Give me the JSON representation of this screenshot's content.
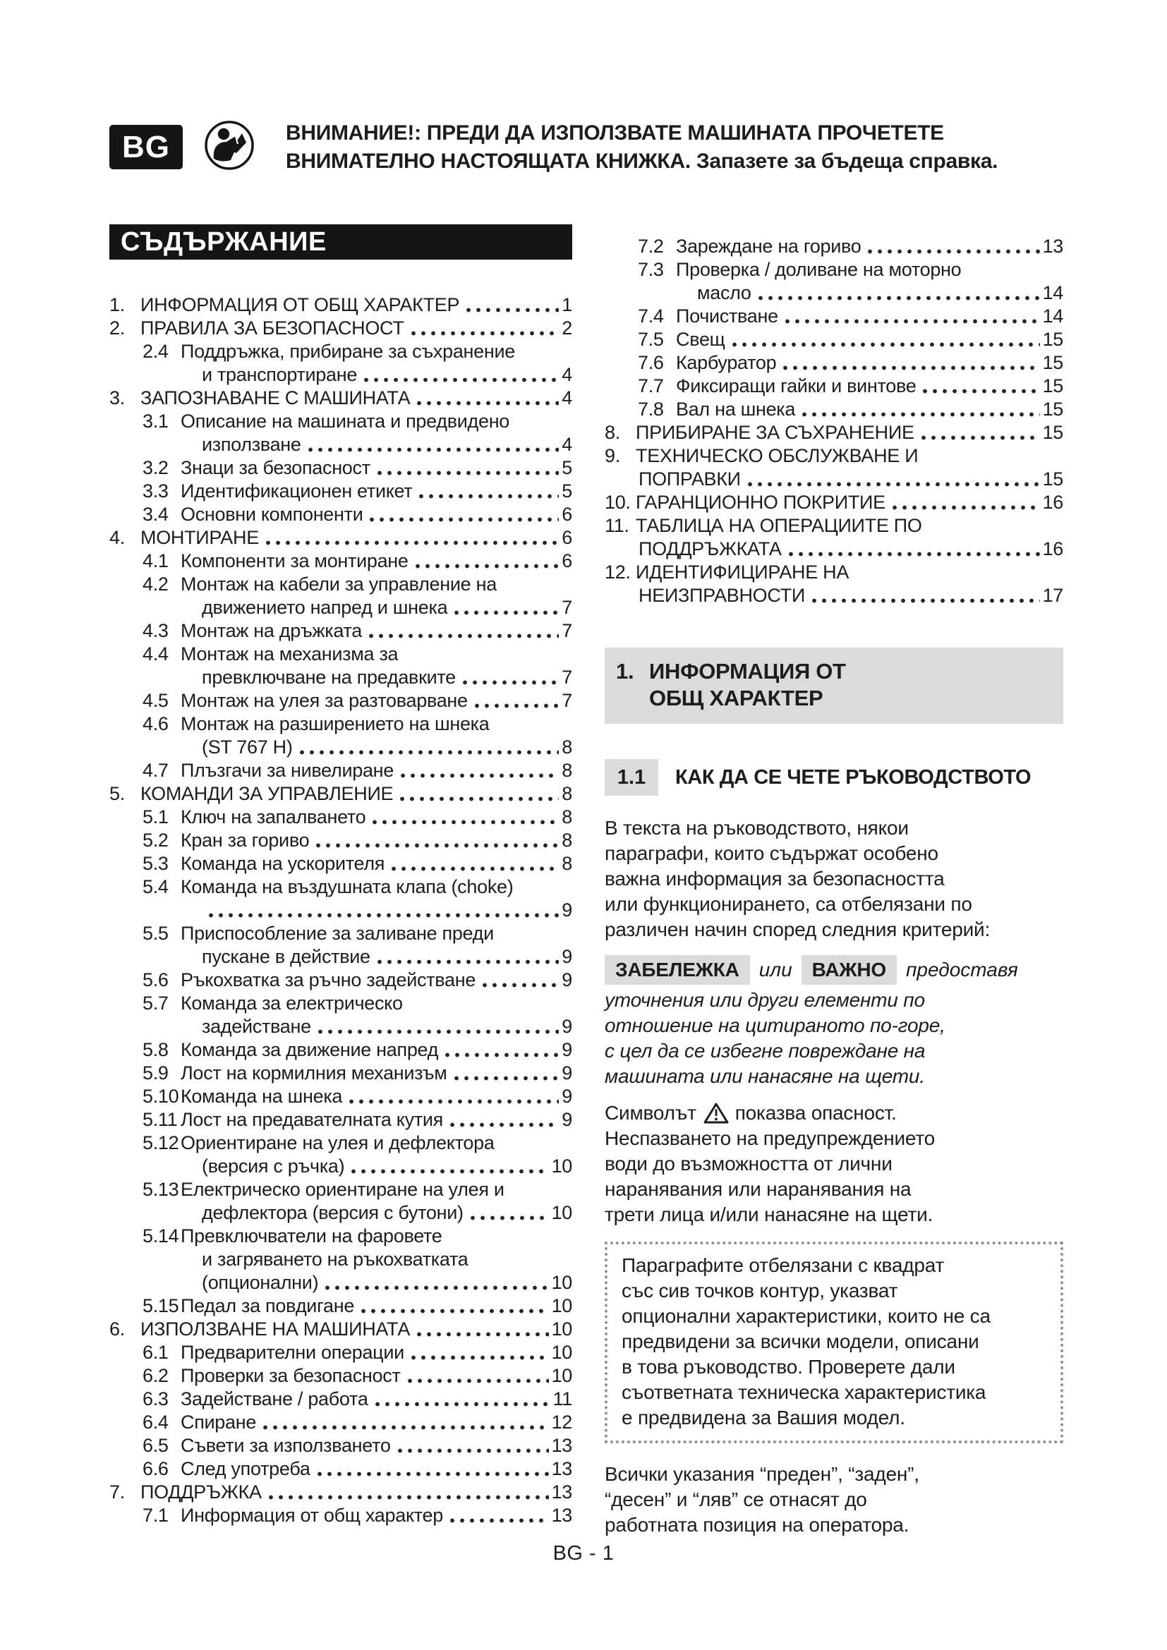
{
  "badge": {
    "label": "BG"
  },
  "header": {
    "line1": "ВНИМАНИЕ!: ПРЕДИ ДА ИЗПОЛЗВАТЕ МАШИНАТА ПРОЧЕТЕТЕ",
    "line2": "ВНИМАТЕЛНО НАСТОЯЩАТА КНИЖКА. Запазете за бъдеща справка."
  },
  "toc": {
    "title": "СЪДЪРЖАНИЕ",
    "columns": {
      "left": [
        {
          "num": "1.",
          "level": 1,
          "lines": [
            "ИНФОРМАЦИЯ ОТ ОБЩ ХАРАКТЕР"
          ],
          "page": "1"
        },
        {
          "num": "2.",
          "level": 1,
          "lines": [
            "ПРАВИЛА ЗА БЕЗОПАСНОСТ"
          ],
          "page": "2"
        },
        {
          "num": "2.4",
          "level": 2,
          "lines": [
            "Поддръжка, прибиране за съхранение",
            "и транспортиране"
          ],
          "page": "4"
        },
        {
          "num": "3.",
          "level": 1,
          "lines": [
            "ЗАПОЗНАВАНЕ С МАШИНАТА"
          ],
          "page": "4"
        },
        {
          "num": "3.1",
          "level": 2,
          "lines": [
            "Описание на машината и предвидено",
            "използване"
          ],
          "page": "4"
        },
        {
          "num": "3.2",
          "level": 2,
          "lines": [
            "Знаци за безопасност"
          ],
          "page": "5"
        },
        {
          "num": "3.3",
          "level": 2,
          "lines": [
            "Идентификационен етикет"
          ],
          "page": "5"
        },
        {
          "num": "3.4",
          "level": 2,
          "lines": [
            "Основни компоненти"
          ],
          "page": "6"
        },
        {
          "num": "4.",
          "level": 1,
          "lines": [
            "МОНТИРАНЕ"
          ],
          "page": "6"
        },
        {
          "num": "4.1",
          "level": 2,
          "lines": [
            "Компоненти за монтиране"
          ],
          "page": "6"
        },
        {
          "num": "4.2",
          "level": 2,
          "lines": [
            "Монтаж на кабели за управление на",
            "движението напред и шнека"
          ],
          "page": "7"
        },
        {
          "num": "4.3",
          "level": 2,
          "lines": [
            "Монтаж на дръжката"
          ],
          "page": "7"
        },
        {
          "num": "4.4",
          "level": 2,
          "lines": [
            "Монтаж на механизма за",
            "превключване на предавките"
          ],
          "page": "7"
        },
        {
          "num": "4.5",
          "level": 2,
          "lines": [
            "Монтаж на улея за разтоварване"
          ],
          "page": "7"
        },
        {
          "num": "4.6",
          "level": 2,
          "lines": [
            "Монтаж на разширението на шнека",
            "(ST 767 H)"
          ],
          "page": "8"
        },
        {
          "num": "4.7",
          "level": 2,
          "lines": [
            "Плъзгачи за нивелиране"
          ],
          "page": "8"
        },
        {
          "num": "5.",
          "level": 1,
          "lines": [
            "КОМАНДИ ЗА УПРАВЛЕНИЕ"
          ],
          "page": "8"
        },
        {
          "num": "5.1",
          "level": 2,
          "lines": [
            "Ключ на запалването"
          ],
          "page": "8"
        },
        {
          "num": "5.2",
          "level": 2,
          "lines": [
            "Кран за гориво"
          ],
          "page": "8"
        },
        {
          "num": "5.3",
          "level": 2,
          "lines": [
            "Команда на ускорителя"
          ],
          "page": "8"
        },
        {
          "num": "5.4",
          "level": 2,
          "lines": [
            "Команда на въздушната клапа (choke)",
            ""
          ],
          "page": "9"
        },
        {
          "num": "5.5",
          "level": 2,
          "lines": [
            "Приспособление за заливане преди",
            "пускане в действие"
          ],
          "page": "9"
        },
        {
          "num": "5.6",
          "level": 2,
          "lines": [
            "Ръкохватка за ръчно задействане"
          ],
          "page": "9"
        },
        {
          "num": "5.7",
          "level": 2,
          "lines": [
            "Команда за електрическо",
            "задействане"
          ],
          "page": "9"
        },
        {
          "num": "5.8",
          "level": 2,
          "lines": [
            "Команда за движение напред"
          ],
          "page": "9"
        },
        {
          "num": "5.9",
          "level": 2,
          "lines": [
            "Лост на кормилния механизъм"
          ],
          "page": "9"
        },
        {
          "num": "5.10",
          "level": 2,
          "lines": [
            "Команда на шнека"
          ],
          "page": "9"
        },
        {
          "num": "5.11",
          "level": 2,
          "lines": [
            "Лост на предавателната кутия"
          ],
          "page": "9"
        },
        {
          "num": "5.12",
          "level": 2,
          "lines": [
            "Ориентиране на улея и дефлектора",
            "(версия с ръчка)"
          ],
          "page": "10"
        },
        {
          "num": "5.13",
          "level": 2,
          "lines": [
            "Електрическо ориентиране на улея и",
            "дефлектора (версия с бутони)"
          ],
          "page": "10"
        },
        {
          "num": "5.14",
          "level": 2,
          "lines": [
            "Превключватели на фаровете",
            "и загряването на ръкохватката",
            "(опционални)"
          ],
          "page": "10"
        },
        {
          "num": "5.15",
          "level": 2,
          "lines": [
            "Педал за повдигане"
          ],
          "page": "10"
        },
        {
          "num": "6.",
          "level": 1,
          "lines": [
            "ИЗПОЛЗВАНЕ НА МАШИНАТА"
          ],
          "page": "10"
        },
        {
          "num": "6.1",
          "level": 2,
          "lines": [
            "Предварителни операции"
          ],
          "page": "10"
        },
        {
          "num": "6.2",
          "level": 2,
          "lines": [
            "Проверки за безопасност"
          ],
          "page": "10"
        },
        {
          "num": "6.3",
          "level": 2,
          "lines": [
            "Задействане / работа"
          ],
          "page": "11"
        },
        {
          "num": "6.4",
          "level": 2,
          "lines": [
            "Спиране"
          ],
          "page": "12"
        },
        {
          "num": "6.5",
          "level": 2,
          "lines": [
            "Съвети за използването"
          ],
          "page": "13"
        },
        {
          "num": "6.6",
          "level": 2,
          "lines": [
            "След употреба"
          ],
          "page": "13"
        },
        {
          "num": "7.",
          "level": 1,
          "lines": [
            "ПОДДРЪЖКА"
          ],
          "page": "13"
        },
        {
          "num": "7.1",
          "level": 2,
          "lines": [
            "Информация от общ характер"
          ],
          "page": "13"
        }
      ],
      "right": [
        {
          "num": "7.2",
          "level": 2,
          "lines": [
            "Зареждане на гориво"
          ],
          "page": "13"
        },
        {
          "num": "7.3",
          "level": 2,
          "lines": [
            "Проверка / доливане на моторно",
            "масло"
          ],
          "page": "14"
        },
        {
          "num": "7.4",
          "level": 2,
          "lines": [
            "Почистване"
          ],
          "page": "14"
        },
        {
          "num": "7.5",
          "level": 2,
          "lines": [
            "Свещ"
          ],
          "page": "15"
        },
        {
          "num": "7.6",
          "level": 2,
          "lines": [
            "Карбуратор"
          ],
          "page": "15"
        },
        {
          "num": "7.7",
          "level": 2,
          "lines": [
            "Фиксиращи гайки и винтове"
          ],
          "page": "15"
        },
        {
          "num": "7.8",
          "level": 2,
          "lines": [
            "Вал на шнека"
          ],
          "page": "15"
        },
        {
          "num": "8.",
          "level": 1,
          "lines": [
            "ПРИБИРАНЕ ЗА СЪХРАНЕНИЕ"
          ],
          "page": "15"
        },
        {
          "num": "9.",
          "level": 1,
          "lines": [
            "ТЕХНИЧЕСКО ОБСЛУЖВАНЕ И",
            "ПОПРАВКИ"
          ],
          "page": "15"
        },
        {
          "num": "10.",
          "level": 1,
          "lines": [
            "ГАРАНЦИОННО ПОКРИТИЕ"
          ],
          "page": "16"
        },
        {
          "num": "11.",
          "level": 1,
          "lines": [
            "ТАБЛИЦА НА ОПЕРАЦИИТЕ ПО",
            "ПОДДРЪЖКАТА"
          ],
          "page": "16"
        },
        {
          "num": "12.",
          "level": 1,
          "lines": [
            "ИДЕНТИФИЦИРАНЕ НА",
            "НЕИЗПРАВНОСТИ"
          ],
          "page": "17"
        }
      ]
    }
  },
  "section": {
    "heading_num": "1.",
    "heading_lines": [
      "ИНФОРМАЦИЯ ОТ",
      "ОБЩ ХАРАКТЕР"
    ],
    "subheading": {
      "num": "1.1",
      "title": "КАК ДА СЕ ЧЕТЕ РЪКОВОДСТВОТО"
    },
    "intro_lines": [
      "В текста на ръководството, някои",
      "параграфи, които съдържат особено",
      "важна информация за безопасността",
      "или функционирането, са отбелязани по",
      "различен начин според следния критерий:"
    ],
    "note": {
      "label_note": "ЗАБЕЛЕЖКА",
      "connector": "или",
      "label_important": "ВАЖНО",
      "tail": "предоставя",
      "italic_lines": [
        "уточнения или други елементи по",
        "отношение на цитираното по-горе,",
        "с цел да се избегне повреждане на",
        "машината или нанасяне на щети."
      ]
    },
    "danger": {
      "lead": "Символът",
      "after_icon": "показва опасност.",
      "lines": [
        "Неспазването на предупреждението",
        "води до възможността от лични",
        "наранявания или наранявания на",
        "трети лица и/или нанасяне на щети."
      ]
    },
    "optional_box_lines": [
      "Параграфите отбелязани с квадрат",
      "със сив точков контур, указват",
      "опционални характеристики, които не са",
      "предвидени за всички модели, описани",
      "в това ръководство. Проверете дали",
      "съответната техническа характеристика",
      "е предвидена за Вашия модел."
    ],
    "orientation_lines": [
      "Всички указания “преден”, “заден”,",
      "“десен” и “ляв” се отнасят до",
      "работната позиция на оператора."
    ]
  },
  "footer": {
    "page_label": "BG - 1"
  },
  "colors": {
    "ink": "#1d1d1d",
    "bar": "#151515",
    "panel": "#dbdbdb",
    "dotted_border": "#8f8f8f"
  }
}
